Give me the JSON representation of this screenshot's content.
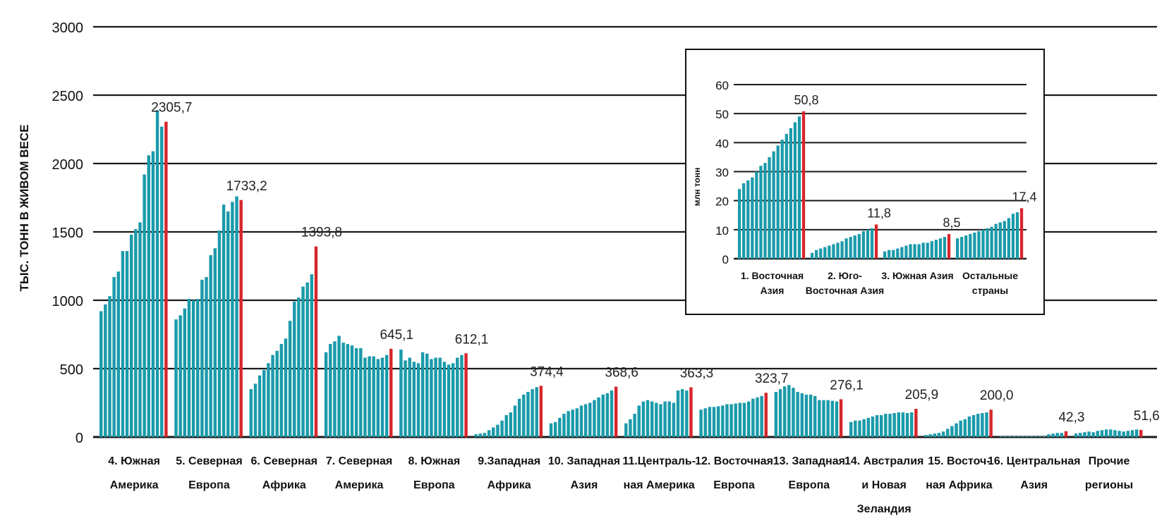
{
  "chart_data": [
    {
      "type": "bar",
      "ylabel": "ТЫС. ТОНН В ЖИВОМ ВЕСЕ",
      "ylim": [
        0,
        3000
      ],
      "yticks": [
        0,
        500,
        1000,
        1500,
        2000,
        2500,
        3000
      ],
      "grid": true,
      "groups": [
        {
          "label": [
            "4. Южная",
            "Америка"
          ],
          "last_label": "2305,7",
          "values": [
            920,
            970,
            1030,
            1170,
            1210,
            1360,
            1360,
            1480,
            1520,
            1570,
            1920,
            2060,
            2090,
            2390,
            2270,
            2305.7
          ]
        },
        {
          "label": [
            "5. Северная",
            "Европа"
          ],
          "last_label": "1733,2",
          "values": [
            860,
            890,
            940,
            1010,
            1000,
            1010,
            1150,
            1170,
            1330,
            1380,
            1510,
            1700,
            1650,
            1720,
            1760,
            1733.2
          ]
        },
        {
          "label": [
            "6. Северная",
            "Африка"
          ],
          "last_label": "1393,8",
          "values": [
            350,
            390,
            450,
            490,
            540,
            600,
            630,
            680,
            720,
            850,
            990,
            1020,
            1100,
            1130,
            1190,
            1393.8
          ]
        },
        {
          "label": [
            "7. Северная",
            "Америка"
          ],
          "last_label": "645,1",
          "values": [
            620,
            680,
            700,
            740,
            690,
            680,
            670,
            650,
            650,
            580,
            590,
            590,
            570,
            580,
            600,
            645.1
          ]
        },
        {
          "label": [
            "8. Южная",
            "Европа"
          ],
          "last_label": "612,1",
          "values": [
            640,
            560,
            580,
            550,
            540,
            620,
            610,
            570,
            580,
            580,
            550,
            530,
            540,
            580,
            600,
            612.1
          ]
        },
        {
          "label": [
            "9.Западная",
            "Африка"
          ],
          "last_label": "374,4",
          "values": [
            20,
            25,
            30,
            50,
            70,
            90,
            120,
            160,
            180,
            230,
            280,
            310,
            330,
            350,
            365,
            374.4
          ]
        },
        {
          "label": [
            "10. Западная",
            "Азия"
          ],
          "last_label": "368,6",
          "values": [
            100,
            110,
            140,
            170,
            190,
            200,
            210,
            230,
            240,
            250,
            270,
            290,
            310,
            320,
            340,
            368.6
          ]
        },
        {
          "label": [
            "11.Централь-",
            "ная Америка"
          ],
          "last_label": "363,3",
          "values": [
            100,
            130,
            170,
            230,
            260,
            270,
            260,
            250,
            240,
            260,
            260,
            250,
            340,
            350,
            340,
            363.3
          ]
        },
        {
          "label": [
            "12. Восточная",
            "Европа"
          ],
          "last_label": "323,7",
          "values": [
            200,
            210,
            220,
            220,
            225,
            230,
            240,
            240,
            245,
            250,
            250,
            260,
            280,
            290,
            300,
            323.7
          ]
        },
        {
          "label": [
            "13. Западная",
            "Европа"
          ],
          "last_label": "276,1",
          "values": [
            330,
            350,
            370,
            380,
            360,
            330,
            320,
            310,
            310,
            300,
            270,
            270,
            270,
            265,
            260,
            276.1
          ]
        },
        {
          "label": [
            "14. Австралия",
            "и Новая",
            "Зеландия"
          ],
          "last_label": "205,9",
          "values": [
            110,
            120,
            120,
            130,
            140,
            150,
            160,
            160,
            170,
            170,
            175,
            180,
            180,
            175,
            180,
            205.9
          ]
        },
        {
          "label": [
            "15. Восточ-",
            "ная Африка"
          ],
          "last_label": "200,0",
          "values": [
            15,
            20,
            25,
            30,
            40,
            60,
            80,
            100,
            120,
            130,
            150,
            160,
            170,
            175,
            180,
            200.0
          ]
        },
        {
          "label": [
            "16. Центральная",
            "Азия"
          ],
          "last_label": "42,3",
          "values": [
            5,
            5,
            5,
            5,
            5,
            5,
            5,
            5,
            5,
            5,
            5,
            20,
            25,
            30,
            30,
            42.3
          ]
        },
        {
          "label": [
            "Прочие",
            "регионы"
          ],
          "last_label": "51,6",
          "values": [
            25,
            30,
            35,
            40,
            35,
            45,
            50,
            55,
            55,
            50,
            45,
            40,
            45,
            50,
            55,
            51.6
          ]
        }
      ]
    },
    {
      "type": "bar",
      "ylabel": "млн тонн",
      "ylim": [
        0,
        60
      ],
      "yticks": [
        0,
        10,
        20,
        30,
        40,
        50,
        60
      ],
      "grid": true,
      "groups": [
        {
          "label": [
            "1. Восточная",
            "Азия"
          ],
          "last_label": "50,8",
          "values": [
            24,
            26,
            27,
            28,
            30,
            32,
            33,
            35,
            37,
            39,
            41,
            43,
            45,
            47,
            49,
            50.8
          ]
        },
        {
          "label": [
            "2. Юго-",
            "Восточная Азия"
          ],
          "last_label": "11,8",
          "values": [
            2,
            3,
            3.5,
            4,
            4.5,
            5,
            5.5,
            6,
            7,
            7.5,
            8,
            8.5,
            9.5,
            10,
            10.5,
            11.8
          ]
        },
        {
          "label": [
            "3. Южная Азия"
          ],
          "last_label": "8,5",
          "values": [
            2.5,
            3,
            3,
            3.5,
            4,
            4.5,
            5,
            5,
            5,
            5.5,
            5.5,
            6,
            6.5,
            7,
            7.5,
            8.5
          ]
        },
        {
          "label": [
            "Остальные",
            "страны"
          ],
          "last_label": "17,4",
          "values": [
            7,
            7.5,
            8,
            8.5,
            9,
            9.5,
            10,
            10.5,
            11,
            12,
            12.5,
            13,
            14,
            15.5,
            16,
            17.4
          ]
        }
      ]
    }
  ],
  "colors": {
    "bar": "#1a9aaa",
    "latest_bar": "#d6262c",
    "gridline": "#1a1a1a",
    "text": "#111111"
  }
}
